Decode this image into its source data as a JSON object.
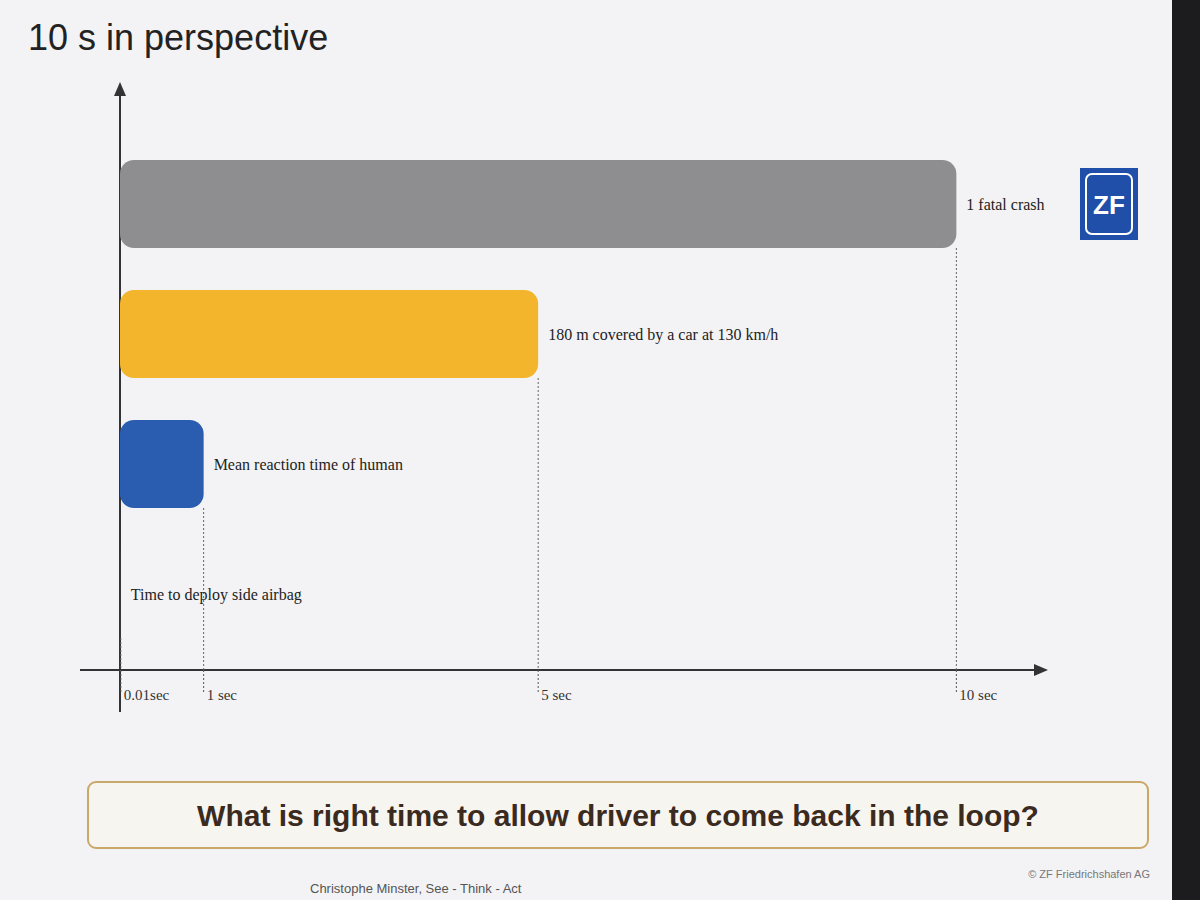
{
  "chart_data": {
    "type": "bar",
    "orientation": "horizontal",
    "title": "10 s in perspective",
    "categories": [
      "1 fatal crash",
      "180 m covered by a car at 130 km/h",
      "Mean reaction time of human",
      "Time to deploy side airbag"
    ],
    "values": [
      10,
      5,
      1,
      0.01
    ],
    "colors": [
      "#8e8e90",
      "#f2b52c",
      "#2a5db0",
      "#3a3a3a"
    ],
    "xlim": [
      0,
      11
    ],
    "xticks": [
      {
        "value": 0.01,
        "label": "0.01sec"
      },
      {
        "value": 1,
        "label": "1 sec"
      },
      {
        "value": 5,
        "label": "5 sec"
      },
      {
        "value": 10,
        "label": "10 sec"
      }
    ],
    "tick_labels": "x"
  },
  "slide": {
    "question": "What is right time to allow driver to come back in the loop?",
    "logo": "ZF",
    "presenter": "Christophe Minster, See - Think - Act",
    "copyright": "© ZF Friedrichshafen AG"
  }
}
